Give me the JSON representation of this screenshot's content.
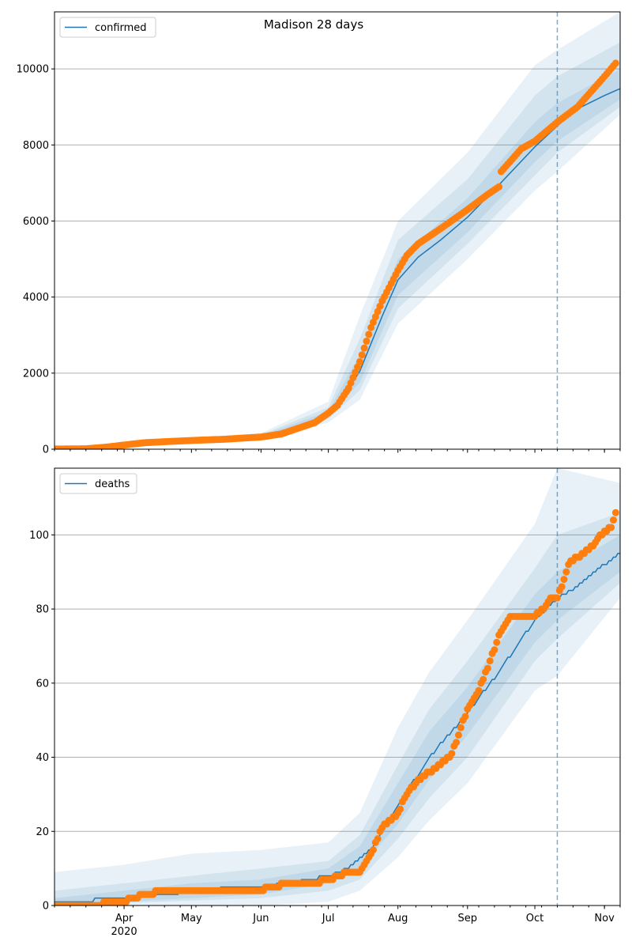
{
  "title": "Madison 28 days",
  "chart_data": [
    {
      "type": "line",
      "legend": "confirmed",
      "legend_placement": "top-left",
      "grid": "horizontal",
      "ylim": [
        0,
        11500
      ],
      "yticks": [
        0,
        2000,
        4000,
        6000,
        8000,
        10000
      ],
      "xlim": [
        "2020-03-01",
        "2020-11-08"
      ],
      "forecast_start": "2020-10-11",
      "model_median": [
        [
          "2020-03-01",
          0
        ],
        [
          "2020-04-01",
          150
        ],
        [
          "2020-05-01",
          230
        ],
        [
          "2020-06-01",
          330
        ],
        [
          "2020-06-15",
          520
        ],
        [
          "2020-06-25",
          750
        ],
        [
          "2020-07-05",
          1150
        ],
        [
          "2020-07-15",
          2050
        ],
        [
          "2020-07-25",
          3500
        ],
        [
          "2020-08-01",
          4450
        ],
        [
          "2020-08-10",
          5050
        ],
        [
          "2020-08-20",
          5500
        ],
        [
          "2020-09-01",
          6100
        ],
        [
          "2020-09-15",
          6950
        ],
        [
          "2020-10-01",
          7950
        ],
        [
          "2020-10-11",
          8500
        ],
        [
          "2020-10-20",
          8950
        ],
        [
          "2020-11-01",
          9300
        ],
        [
          "2020-11-08",
          9480
        ]
      ],
      "bands": [
        {
          "upper": [
            [
              "2020-03-01",
              30
            ],
            [
              "2020-06-01",
              420
            ],
            [
              "2020-07-01",
              1250
            ],
            [
              "2020-07-15",
              3500
            ],
            [
              "2020-08-01",
              6000
            ],
            [
              "2020-09-01",
              7800
            ],
            [
              "2020-10-01",
              10100
            ],
            [
              "2020-10-11",
              10500
            ],
            [
              "2020-11-08",
              11500
            ]
          ],
          "lower": [
            [
              "2020-03-01",
              0
            ],
            [
              "2020-06-01",
              260
            ],
            [
              "2020-07-01",
              700
            ],
            [
              "2020-07-15",
              1300
            ],
            [
              "2020-08-01",
              3300
            ],
            [
              "2020-09-01",
              5000
            ],
            [
              "2020-10-01",
              6800
            ],
            [
              "2020-10-11",
              7300
            ],
            [
              "2020-11-08",
              8800
            ]
          ]
        },
        {
          "upper": [
            [
              "2020-03-01",
              15
            ],
            [
              "2020-06-01",
              380
            ],
            [
              "2020-07-01",
              1100
            ],
            [
              "2020-07-15",
              2900
            ],
            [
              "2020-08-01",
              5500
            ],
            [
              "2020-09-01",
              7100
            ],
            [
              "2020-10-01",
              9300
            ],
            [
              "2020-10-11",
              9800
            ],
            [
              "2020-11-08",
              10700
            ]
          ],
          "lower": [
            [
              "2020-03-01",
              0
            ],
            [
              "2020-06-01",
              290
            ],
            [
              "2020-07-01",
              800
            ],
            [
              "2020-07-15",
              1550
            ],
            [
              "2020-08-01",
              3700
            ],
            [
              "2020-09-01",
              5400
            ],
            [
              "2020-10-01",
              7200
            ],
            [
              "2020-10-11",
              7800
            ],
            [
              "2020-11-08",
              9000
            ]
          ]
        },
        {
          "upper": [
            [
              "2020-03-01",
              5
            ],
            [
              "2020-06-01",
              350
            ],
            [
              "2020-07-01",
              1000
            ],
            [
              "2020-07-15",
              2500
            ],
            [
              "2020-08-01",
              5000
            ],
            [
              "2020-09-01",
              6600
            ],
            [
              "2020-10-01",
              8600
            ],
            [
              "2020-10-11",
              9100
            ],
            [
              "2020-11-08",
              10000
            ]
          ],
          "lower": [
            [
              "2020-03-01",
              0
            ],
            [
              "2020-06-01",
              310
            ],
            [
              "2020-07-01",
              870
            ],
            [
              "2020-07-15",
              1750
            ],
            [
              "2020-08-01",
              4050
            ],
            [
              "2020-09-01",
              5700
            ],
            [
              "2020-10-01",
              7550
            ],
            [
              "2020-10-11",
              8100
            ],
            [
              "2020-11-08",
              9200
            ]
          ]
        }
      ],
      "observed": [
        [
          "2020-03-01",
          5
        ],
        [
          "2020-03-15",
          10
        ],
        [
          "2020-03-25",
          60
        ],
        [
          "2020-04-01",
          110
        ],
        [
          "2020-04-10",
          170
        ],
        [
          "2020-04-20",
          200
        ],
        [
          "2020-05-01",
          230
        ],
        [
          "2020-05-15",
          260
        ],
        [
          "2020-06-01",
          320
        ],
        [
          "2020-06-10",
          400
        ],
        [
          "2020-06-18",
          560
        ],
        [
          "2020-06-25",
          700
        ],
        [
          "2020-07-01",
          950
        ],
        [
          "2020-07-05",
          1150
        ],
        [
          "2020-07-10",
          1600
        ],
        [
          "2020-07-15",
          2300
        ],
        [
          "2020-07-20",
          3200
        ],
        [
          "2020-07-25",
          3900
        ],
        [
          "2020-08-01",
          4700
        ],
        [
          "2020-08-05",
          5100
        ],
        [
          "2020-08-10",
          5400
        ],
        [
          "2020-08-20",
          5800
        ],
        [
          "2020-09-01",
          6300
        ],
        [
          "2020-09-10",
          6700
        ],
        [
          "2020-09-15",
          6900
        ],
        [
          "2020-09-16",
          7300
        ],
        [
          "2020-09-25",
          7900
        ],
        [
          "2020-10-01",
          8100
        ],
        [
          "2020-10-11",
          8600
        ],
        [
          "2020-10-20",
          9000
        ],
        [
          "2020-11-01",
          9800
        ],
        [
          "2020-11-06",
          10150
        ]
      ]
    },
    {
      "type": "line",
      "legend": "deaths",
      "legend_placement": "top-left",
      "grid": "horizontal",
      "ylim": [
        0,
        118
      ],
      "yticks": [
        0,
        20,
        40,
        60,
        80,
        100
      ],
      "xlim": [
        "2020-03-01",
        "2020-11-08"
      ],
      "forecast_start": "2020-10-11",
      "xticks": [
        {
          "date": "2020-04-01",
          "label": "Apr",
          "sublabel": "2020"
        },
        {
          "date": "2020-05-01",
          "label": "May"
        },
        {
          "date": "2020-06-01",
          "label": "Jun"
        },
        {
          "date": "2020-07-01",
          "label": "Jul"
        },
        {
          "date": "2020-08-01",
          "label": "Aug"
        },
        {
          "date": "2020-09-01",
          "label": "Sep"
        },
        {
          "date": "2020-10-01",
          "label": "Oct"
        },
        {
          "date": "2020-11-01",
          "label": "Nov"
        }
      ],
      "model_median": [
        [
          "2020-03-01",
          1
        ],
        [
          "2020-03-18",
          1
        ],
        [
          "2020-03-19",
          2
        ],
        [
          "2020-04-25",
          3
        ],
        [
          "2020-04-26",
          4
        ],
        [
          "2020-06-01",
          5
        ],
        [
          "2020-06-15",
          6
        ],
        [
          "2020-07-01",
          8
        ],
        [
          "2020-07-10",
          10
        ],
        [
          "2020-07-20",
          15
        ],
        [
          "2020-08-01",
          27
        ],
        [
          "2020-08-15",
          40
        ],
        [
          "2020-09-01",
          52
        ],
        [
          "2020-09-15",
          63
        ],
        [
          "2020-10-01",
          77
        ],
        [
          "2020-10-11",
          83
        ],
        [
          "2020-10-20",
          86
        ],
        [
          "2020-11-01",
          92
        ],
        [
          "2020-11-08",
          95
        ]
      ],
      "bands": [
        {
          "upper": [
            [
              "2020-03-01",
              9
            ],
            [
              "2020-04-01",
              11
            ],
            [
              "2020-05-01",
              14
            ],
            [
              "2020-06-01",
              15
            ],
            [
              "2020-07-01",
              17
            ],
            [
              "2020-07-15",
              25
            ],
            [
              "2020-08-01",
              48
            ],
            [
              "2020-08-15",
              63
            ],
            [
              "2020-09-01",
              77
            ],
            [
              "2020-10-01",
              103
            ],
            [
              "2020-10-11",
              118
            ],
            [
              "2020-11-08",
              114
            ]
          ],
          "lower": [
            [
              "2020-03-01",
              0
            ],
            [
              "2020-06-01",
              0
            ],
            [
              "2020-07-01",
              1
            ],
            [
              "2020-07-15",
              4
            ],
            [
              "2020-08-01",
              13
            ],
            [
              "2020-08-15",
              23
            ],
            [
              "2020-09-01",
              33
            ],
            [
              "2020-10-01",
              58
            ],
            [
              "2020-10-11",
              62
            ],
            [
              "2020-11-08",
              83
            ]
          ]
        },
        {
          "upper": [
            [
              "2020-03-01",
              4
            ],
            [
              "2020-04-01",
              6
            ],
            [
              "2020-05-01",
              8
            ],
            [
              "2020-06-01",
              10
            ],
            [
              "2020-07-01",
              12
            ],
            [
              "2020-07-15",
              19
            ],
            [
              "2020-08-01",
              38
            ],
            [
              "2020-08-15",
              53
            ],
            [
              "2020-09-01",
              66
            ],
            [
              "2020-10-01",
              91
            ],
            [
              "2020-10-11",
              100
            ],
            [
              "2020-11-08",
              106
            ]
          ],
          "lower": [
            [
              "2020-03-01",
              0
            ],
            [
              "2020-06-01",
              2
            ],
            [
              "2020-07-01",
              4
            ],
            [
              "2020-07-15",
              7
            ],
            [
              "2020-08-01",
              18
            ],
            [
              "2020-08-15",
              29
            ],
            [
              "2020-09-01",
              40
            ],
            [
              "2020-10-01",
              66
            ],
            [
              "2020-10-11",
              72
            ],
            [
              "2020-11-08",
              87
            ]
          ]
        },
        {
          "upper": [
            [
              "2020-03-01",
              2
            ],
            [
              "2020-04-01",
              4
            ],
            [
              "2020-05-01",
              6
            ],
            [
              "2020-06-01",
              7
            ],
            [
              "2020-07-01",
              10
            ],
            [
              "2020-07-15",
              16
            ],
            [
              "2020-08-01",
              33
            ],
            [
              "2020-08-15",
              47
            ],
            [
              "2020-09-01",
              59
            ],
            [
              "2020-10-01",
              84
            ],
            [
              "2020-10-11",
              90
            ],
            [
              "2020-11-08",
              100
            ]
          ],
          "lower": [
            [
              "2020-03-01",
              0
            ],
            [
              "2020-06-01",
              3
            ],
            [
              "2020-07-01",
              6
            ],
            [
              "2020-07-15",
              10
            ],
            [
              "2020-08-01",
              22
            ],
            [
              "2020-08-15",
              34
            ],
            [
              "2020-09-01",
              46
            ],
            [
              "2020-10-01",
              71
            ],
            [
              "2020-10-11",
              77
            ],
            [
              "2020-11-08",
              90
            ]
          ]
        }
      ],
      "observed": [
        [
          "2020-03-01",
          0
        ],
        [
          "2020-03-20",
          0
        ],
        [
          "2020-03-25",
          1
        ],
        [
          "2020-04-01",
          1
        ],
        [
          "2020-04-05",
          2
        ],
        [
          "2020-04-10",
          3
        ],
        [
          "2020-04-20",
          4
        ],
        [
          "2020-05-01",
          4
        ],
        [
          "2020-05-15",
          4
        ],
        [
          "2020-06-01",
          4
        ],
        [
          "2020-06-05",
          5
        ],
        [
          "2020-06-15",
          6
        ],
        [
          "2020-06-25",
          6
        ],
        [
          "2020-07-01",
          7
        ],
        [
          "2020-07-10",
          9
        ],
        [
          "2020-07-15",
          9
        ],
        [
          "2020-07-20",
          14
        ],
        [
          "2020-07-25",
          21
        ],
        [
          "2020-08-01",
          25
        ],
        [
          "2020-08-05",
          30
        ],
        [
          "2020-08-10",
          34
        ],
        [
          "2020-08-15",
          36
        ],
        [
          "2020-08-20",
          38
        ],
        [
          "2020-08-25",
          41
        ],
        [
          "2020-09-01",
          53
        ],
        [
          "2020-09-05",
          57
        ],
        [
          "2020-09-10",
          64
        ],
        [
          "2020-09-15",
          73
        ],
        [
          "2020-09-20",
          78
        ],
        [
          "2020-09-25",
          78
        ],
        [
          "2020-10-01",
          78
        ],
        [
          "2020-10-05",
          80
        ],
        [
          "2020-10-08",
          83
        ],
        [
          "2020-10-11",
          83
        ],
        [
          "2020-10-14",
          88
        ],
        [
          "2020-10-16",
          92
        ],
        [
          "2020-10-20",
          94
        ],
        [
          "2020-10-25",
          96
        ],
        [
          "2020-10-28",
          98
        ],
        [
          "2020-11-01",
          101
        ],
        [
          "2020-11-04",
          102
        ],
        [
          "2020-11-06",
          106
        ]
      ]
    }
  ]
}
